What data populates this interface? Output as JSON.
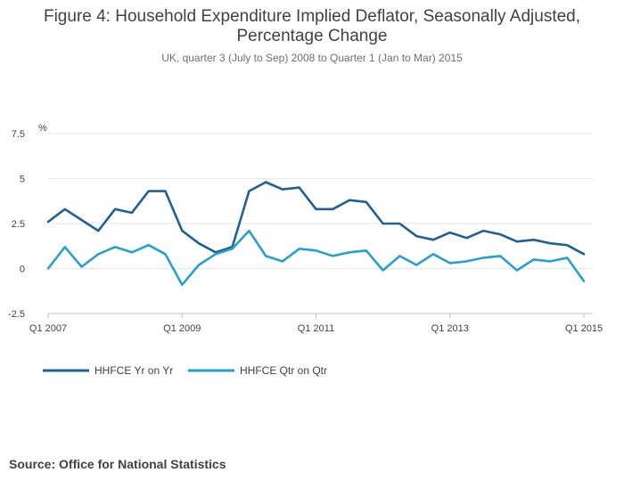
{
  "chart_data": {
    "type": "line",
    "title": "Figure 4: Household Expenditure Implied Deflator, Seasonally Adjusted, Percentage Change",
    "title_lines": [
      "Figure 4: Household Expenditure Implied Deflator, Seasonally Adjusted,",
      "Percentage Change"
    ],
    "subtitle": "UK, quarter 3 (July to Sep) 2008 to Quarter 1 (Jan to Mar) 2015",
    "ylabel": "%",
    "xlabel": "",
    "ylim": [
      -2.5,
      7.5
    ],
    "yticks": [
      -2.5,
      0,
      2.5,
      5,
      7.5
    ],
    "ytick_labels": [
      "-2.5",
      "0",
      "2.5",
      "5",
      "7.5"
    ],
    "xtick_labels": [
      "Q1 2007",
      "Q1 2009",
      "Q1 2011",
      "Q1 2013",
      "Q1 2015"
    ],
    "xtick_index": [
      0,
      8,
      16,
      24,
      32
    ],
    "grid": true,
    "legend_position": "bottom-left",
    "categories": [
      "Q1 2007",
      "Q2 2007",
      "Q3 2007",
      "Q4 2007",
      "Q1 2008",
      "Q2 2008",
      "Q3 2008",
      "Q4 2008",
      "Q1 2009",
      "Q2 2009",
      "Q3 2009",
      "Q4 2009",
      "Q1 2010",
      "Q2 2010",
      "Q3 2010",
      "Q4 2010",
      "Q1 2011",
      "Q2 2011",
      "Q3 2011",
      "Q4 2011",
      "Q1 2012",
      "Q2 2012",
      "Q3 2012",
      "Q4 2012",
      "Q1 2013",
      "Q2 2013",
      "Q3 2013",
      "Q4 2013",
      "Q1 2014",
      "Q2 2014",
      "Q3 2014",
      "Q4 2014",
      "Q1 2015"
    ],
    "series": [
      {
        "name": "HHFCE Yr on Yr",
        "color": "#206095",
        "values": [
          2.6,
          3.3,
          2.7,
          2.1,
          3.3,
          3.1,
          4.3,
          4.3,
          2.1,
          1.4,
          0.9,
          1.2,
          4.3,
          4.8,
          4.4,
          4.5,
          3.3,
          3.3,
          3.8,
          3.7,
          2.5,
          2.5,
          1.8,
          1.6,
          2.0,
          1.7,
          2.1,
          1.9,
          1.5,
          1.6,
          1.4,
          1.3,
          0.8
        ]
      },
      {
        "name": "HHFCE Qtr on Qtr",
        "color": "#27a0cc",
        "values": [
          0.0,
          1.2,
          0.1,
          0.8,
          1.2,
          0.9,
          1.3,
          0.8,
          -0.9,
          0.2,
          0.8,
          1.1,
          2.1,
          0.7,
          0.4,
          1.1,
          1.0,
          0.7,
          0.9,
          1.0,
          -0.1,
          0.7,
          0.2,
          0.8,
          0.3,
          0.4,
          0.6,
          0.7,
          -0.1,
          0.5,
          0.4,
          0.6,
          -0.7
        ]
      }
    ]
  },
  "source": "Source: Office for National Statistics"
}
